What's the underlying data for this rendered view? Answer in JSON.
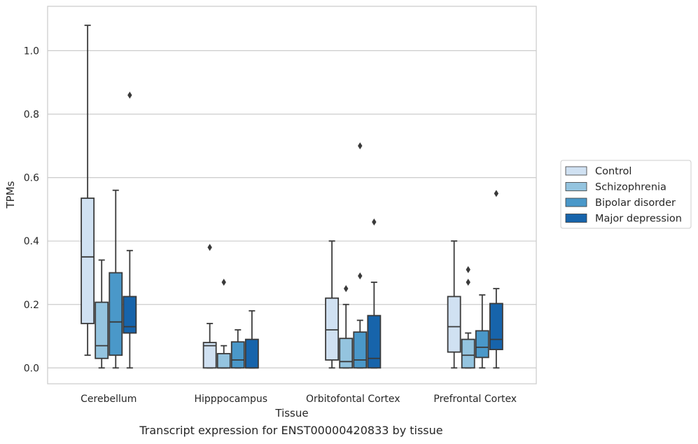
{
  "caption": "Transcript expression for ENST00000420833 by tissue",
  "chart_data": {
    "type": "box",
    "xlabel": "Tissue",
    "ylabel": "TPMs",
    "ylim": [
      -0.05,
      1.14
    ],
    "yticks": [
      "0.0",
      "0.2",
      "0.4",
      "0.6",
      "0.8",
      "1.0"
    ],
    "grid": true,
    "legend_position": "right",
    "categories": [
      "Cerebellum",
      "Hipppocampus",
      "Orbitofontal Cortex",
      "Prefrontal Cortex"
    ],
    "series": [
      {
        "name": "Control",
        "color": "#d0e1f2",
        "boxes": [
          {
            "whisker_low": 0.04,
            "q1": 0.14,
            "median": 0.35,
            "q3": 0.535,
            "whisker_high": 1.08,
            "outliers": []
          },
          {
            "whisker_low": 0.0,
            "q1": 0.0,
            "median": 0.07,
            "q3": 0.08,
            "whisker_high": 0.14,
            "outliers": [
              0.38
            ]
          },
          {
            "whisker_low": 0.0,
            "q1": 0.025,
            "median": 0.12,
            "q3": 0.22,
            "whisker_high": 0.4,
            "outliers": []
          },
          {
            "whisker_low": 0.0,
            "q1": 0.05,
            "median": 0.13,
            "q3": 0.225,
            "whisker_high": 0.4,
            "outliers": []
          }
        ]
      },
      {
        "name": "Schizophrenia",
        "color": "#94c4df",
        "boxes": [
          {
            "whisker_low": 0.0,
            "q1": 0.03,
            "median": 0.07,
            "q3": 0.207,
            "whisker_high": 0.34,
            "outliers": []
          },
          {
            "whisker_low": 0.0,
            "q1": 0.0,
            "median": 0.0,
            "q3": 0.045,
            "whisker_high": 0.07,
            "outliers": [
              0.27
            ]
          },
          {
            "whisker_low": 0.0,
            "q1": 0.0,
            "median": 0.02,
            "q3": 0.093,
            "whisker_high": 0.2,
            "outliers": [
              0.25
            ]
          },
          {
            "whisker_low": 0.0,
            "q1": 0.0,
            "median": 0.04,
            "q3": 0.09,
            "whisker_high": 0.11,
            "outliers": [
              0.27,
              0.31
            ]
          }
        ]
      },
      {
        "name": "Bipolar disorder",
        "color": "#4a98c9",
        "boxes": [
          {
            "whisker_low": 0.0,
            "q1": 0.04,
            "median": 0.145,
            "q3": 0.3,
            "whisker_high": 0.56,
            "outliers": []
          },
          {
            "whisker_low": 0.0,
            "q1": 0.0,
            "median": 0.025,
            "q3": 0.082,
            "whisker_high": 0.12,
            "outliers": []
          },
          {
            "whisker_low": 0.0,
            "q1": 0.0,
            "median": 0.025,
            "q3": 0.113,
            "whisker_high": 0.15,
            "outliers": [
              0.29,
              0.7
            ]
          },
          {
            "whisker_low": 0.0,
            "q1": 0.033,
            "median": 0.065,
            "q3": 0.117,
            "whisker_high": 0.23,
            "outliers": []
          }
        ]
      },
      {
        "name": "Major depression",
        "color": "#1764ab",
        "boxes": [
          {
            "whisker_low": 0.0,
            "q1": 0.11,
            "median": 0.13,
            "q3": 0.225,
            "whisker_high": 0.37,
            "outliers": [
              0.86
            ]
          },
          {
            "whisker_low": 0.0,
            "q1": 0.0,
            "median": 0.0,
            "q3": 0.09,
            "whisker_high": 0.18,
            "outliers": []
          },
          {
            "whisker_low": 0.0,
            "q1": 0.0,
            "median": 0.03,
            "q3": 0.165,
            "whisker_high": 0.27,
            "outliers": [
              0.46
            ]
          },
          {
            "whisker_low": 0.0,
            "q1": 0.058,
            "median": 0.09,
            "q3": 0.203,
            "whisker_high": 0.25,
            "outliers": [
              0.55
            ]
          }
        ]
      }
    ]
  }
}
